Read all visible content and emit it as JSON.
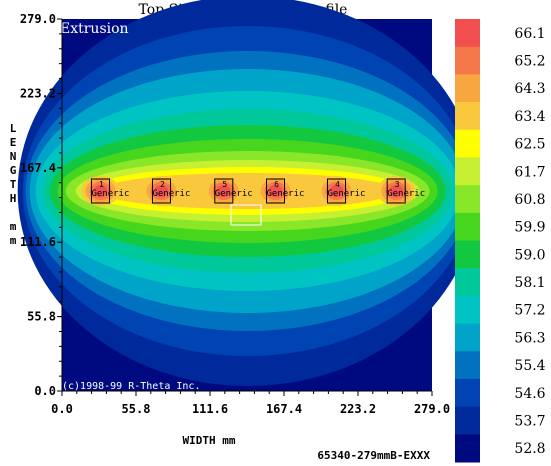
{
  "chart_data": {
    "type": "heatmap",
    "title": "Top Sink Temperature Profile",
    "xlabel": "WIDTH mm",
    "ylabel_chars": [
      "L",
      "E",
      "N",
      "G",
      "T",
      "H",
      "",
      "m",
      "m"
    ],
    "xlim": [
      0.0,
      279.0
    ],
    "ylim": [
      0.0,
      279.0
    ],
    "xticks": [
      0.0,
      55.8,
      111.6,
      167.4,
      223.2,
      279.0
    ],
    "xtick_labels": [
      "0.0",
      "55.8",
      "111.6",
      "167.4",
      "223.2",
      "279.0"
    ],
    "yticks": [
      0.0,
      55.8,
      111.6,
      167.4,
      223.2,
      279.0
    ],
    "ytick_labels": [
      "0.0",
      "55.8",
      "111.6",
      "167.4",
      "223.2",
      "279.0"
    ],
    "inner_label": "Extrusion",
    "copyright": "(c)1998-99 R-Theta Inc.",
    "part_number": "65340-279mmB-EXXX",
    "colorbar": {
      "levels": [
        66.1,
        65.2,
        64.3,
        63.4,
        62.5,
        61.7,
        60.8,
        59.9,
        59.0,
        58.1,
        57.2,
        56.3,
        55.4,
        54.6,
        53.7,
        52.8
      ],
      "labels": [
        "66.1",
        "65.2",
        "64.3",
        "63.4",
        "62.5",
        "61.7",
        "60.8",
        "59.9",
        "59.0",
        "58.1",
        "57.2",
        "56.3",
        "55.4",
        "54.6",
        "53.7",
        "52.8"
      ],
      "colors": [
        "#f25050",
        "#f4784a",
        "#f8a640",
        "#fac83c",
        "#ffff00",
        "#c8f032",
        "#8ae628",
        "#46d61e",
        "#12c840",
        "#00c89a",
        "#00c4c4",
        "#00a4c8",
        "#0072c0",
        "#0044b4",
        "#002a9c",
        "#000a80"
      ]
    },
    "devices": [
      {
        "label": "1",
        "text": "Generic",
        "x": 29.0,
        "y": 150.0
      },
      {
        "label": "2",
        "text": "Generic",
        "x": 75.0,
        "y": 150.0
      },
      {
        "label": "5",
        "text": "Generic",
        "x": 122.0,
        "y": 150.0
      },
      {
        "label": "6",
        "text": "Generic",
        "x": 161.0,
        "y": 150.0
      },
      {
        "label": "4",
        "text": "Generic",
        "x": 207.0,
        "y": 150.0
      },
      {
        "label": "3",
        "text": "Generic",
        "x": 252.0,
        "y": 150.0
      }
    ],
    "field": {
      "peak_value": 66.1,
      "min_value": 52.8,
      "center_y": 150.0
    }
  }
}
